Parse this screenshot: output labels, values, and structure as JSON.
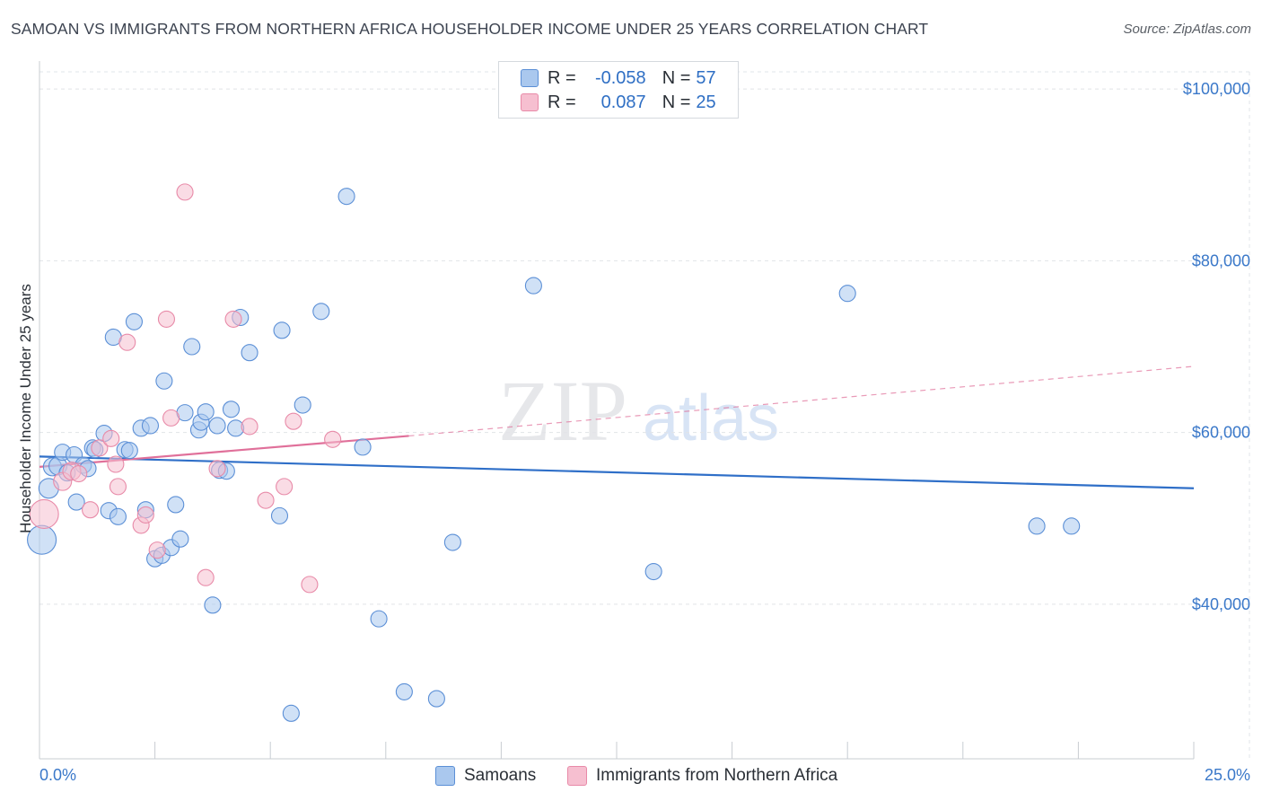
{
  "colors": {
    "samoans_fill": "#aac8ee",
    "samoans_stroke": "#5b8fd6",
    "samoans_line": "#2f6fc8",
    "immigrants_fill": "#f6bfd0",
    "immigrants_stroke": "#e88aa8",
    "immigrants_line": "#e0709a",
    "grid": "#e1e4e8",
    "axis_text": "#3a78c9"
  },
  "chart_data": {
    "type": "scatter",
    "title": "SAMOAN VS IMMIGRANTS FROM NORTHERN AFRICA HOUSEHOLDER INCOME UNDER 25 YEARS CORRELATION CHART",
    "source": "Source: ZipAtlas.com",
    "xlabel": "",
    "ylabel": "Householder Income Under 25 years",
    "xlim": [
      0,
      25
    ],
    "ylim": [
      22000,
      102000
    ],
    "x_tick_labels": [
      "0.0%",
      "25.0%"
    ],
    "y_ticks": [
      40000,
      60000,
      80000,
      100000
    ],
    "y_tick_labels": [
      "$40,000",
      "$60,000",
      "$80,000",
      "$100,000"
    ],
    "watermark": {
      "zip": "ZIP",
      "atlas": "atlas"
    },
    "legend": {
      "rows": [
        {
          "r_label": "R =",
          "r_value": "-0.058",
          "n_label": "N =",
          "n_value": "57"
        },
        {
          "r_label": "R =",
          "r_value": "0.087",
          "n_label": "N =",
          "n_value": "25"
        }
      ]
    },
    "series": [
      {
        "name": "Samoans",
        "trend": {
          "x": [
            0,
            25
          ],
          "y": [
            57200,
            53500
          ],
          "style": "solid"
        },
        "points": [
          {
            "x": 0.05,
            "y": 47500,
            "s": 16
          },
          {
            "x": 0.2,
            "y": 53500,
            "s": 11
          },
          {
            "x": 0.28,
            "y": 56000,
            "s": 10
          },
          {
            "x": 0.4,
            "y": 56100,
            "s": 10
          },
          {
            "x": 0.5,
            "y": 57700,
            "s": 9
          },
          {
            "x": 0.6,
            "y": 55300,
            "s": 9
          },
          {
            "x": 0.75,
            "y": 57400,
            "s": 9
          },
          {
            "x": 0.8,
            "y": 51900,
            "s": 9
          },
          {
            "x": 0.95,
            "y": 56200,
            "s": 9
          },
          {
            "x": 1.05,
            "y": 55800,
            "s": 9
          },
          {
            "x": 1.15,
            "y": 58200,
            "s": 9
          },
          {
            "x": 1.2,
            "y": 58000,
            "s": 9
          },
          {
            "x": 1.4,
            "y": 59900,
            "s": 9
          },
          {
            "x": 1.5,
            "y": 50900,
            "s": 9
          },
          {
            "x": 1.6,
            "y": 71100,
            "s": 9
          },
          {
            "x": 1.7,
            "y": 50200,
            "s": 9
          },
          {
            "x": 1.85,
            "y": 58000,
            "s": 9
          },
          {
            "x": 1.95,
            "y": 57900,
            "s": 9
          },
          {
            "x": 2.05,
            "y": 72900,
            "s": 9
          },
          {
            "x": 2.2,
            "y": 60500,
            "s": 9
          },
          {
            "x": 2.3,
            "y": 51000,
            "s": 9
          },
          {
            "x": 2.4,
            "y": 60800,
            "s": 9
          },
          {
            "x": 2.5,
            "y": 45300,
            "s": 9
          },
          {
            "x": 2.65,
            "y": 45700,
            "s": 9
          },
          {
            "x": 2.7,
            "y": 66000,
            "s": 9
          },
          {
            "x": 2.85,
            "y": 46600,
            "s": 9
          },
          {
            "x": 2.95,
            "y": 51600,
            "s": 9
          },
          {
            "x": 3.05,
            "y": 47600,
            "s": 9
          },
          {
            "x": 3.15,
            "y": 62300,
            "s": 9
          },
          {
            "x": 3.3,
            "y": 70000,
            "s": 9
          },
          {
            "x": 3.45,
            "y": 60300,
            "s": 9
          },
          {
            "x": 3.5,
            "y": 61200,
            "s": 9
          },
          {
            "x": 3.6,
            "y": 62400,
            "s": 9
          },
          {
            "x": 3.75,
            "y": 39900,
            "s": 9
          },
          {
            "x": 3.85,
            "y": 60800,
            "s": 9
          },
          {
            "x": 3.9,
            "y": 55600,
            "s": 9
          },
          {
            "x": 4.05,
            "y": 55500,
            "s": 9
          },
          {
            "x": 4.15,
            "y": 62700,
            "s": 9
          },
          {
            "x": 4.25,
            "y": 60500,
            "s": 9
          },
          {
            "x": 4.35,
            "y": 73400,
            "s": 9
          },
          {
            "x": 4.55,
            "y": 69300,
            "s": 9
          },
          {
            "x": 5.25,
            "y": 71900,
            "s": 9
          },
          {
            "x": 5.2,
            "y": 50300,
            "s": 9
          },
          {
            "x": 5.45,
            "y": 27300,
            "s": 9
          },
          {
            "x": 5.7,
            "y": 63200,
            "s": 9
          },
          {
            "x": 6.1,
            "y": 74100,
            "s": 9
          },
          {
            "x": 6.65,
            "y": 87500,
            "s": 9
          },
          {
            "x": 7.0,
            "y": 58300,
            "s": 9
          },
          {
            "x": 7.35,
            "y": 38300,
            "s": 9
          },
          {
            "x": 7.9,
            "y": 29800,
            "s": 9
          },
          {
            "x": 8.6,
            "y": 29000,
            "s": 9
          },
          {
            "x": 8.95,
            "y": 47200,
            "s": 9
          },
          {
            "x": 10.7,
            "y": 77100,
            "s": 9
          },
          {
            "x": 13.3,
            "y": 43800,
            "s": 9
          },
          {
            "x": 17.5,
            "y": 76200,
            "s": 9
          },
          {
            "x": 21.6,
            "y": 49100,
            "s": 9
          },
          {
            "x": 22.35,
            "y": 49100,
            "s": 9
          }
        ]
      },
      {
        "name": "Immigrants from Northern Africa",
        "trend": {
          "x": [
            0,
            8.0
          ],
          "y": [
            56000,
            59600
          ],
          "style": "solid",
          "extended": {
            "x": [
              8.0,
              25
            ],
            "y": [
              59600,
              67700
            ],
            "style": "dashed"
          }
        },
        "points": [
          {
            "x": 0.1,
            "y": 50500,
            "s": 16
          },
          {
            "x": 0.5,
            "y": 54300,
            "s": 10
          },
          {
            "x": 0.7,
            "y": 55500,
            "s": 10
          },
          {
            "x": 0.85,
            "y": 55200,
            "s": 9
          },
          {
            "x": 1.1,
            "y": 51000,
            "s": 9
          },
          {
            "x": 1.3,
            "y": 58200,
            "s": 9
          },
          {
            "x": 1.55,
            "y": 59300,
            "s": 9
          },
          {
            "x": 1.65,
            "y": 56300,
            "s": 9
          },
          {
            "x": 1.7,
            "y": 53700,
            "s": 9
          },
          {
            "x": 1.9,
            "y": 70500,
            "s": 9
          },
          {
            "x": 2.2,
            "y": 49200,
            "s": 9
          },
          {
            "x": 2.3,
            "y": 50400,
            "s": 9
          },
          {
            "x": 2.55,
            "y": 46300,
            "s": 9
          },
          {
            "x": 2.75,
            "y": 73200,
            "s": 9
          },
          {
            "x": 2.85,
            "y": 61700,
            "s": 9
          },
          {
            "x": 3.15,
            "y": 88000,
            "s": 9
          },
          {
            "x": 3.6,
            "y": 43100,
            "s": 9
          },
          {
            "x": 3.85,
            "y": 55800,
            "s": 9
          },
          {
            "x": 4.2,
            "y": 73200,
            "s": 9
          },
          {
            "x": 4.55,
            "y": 60700,
            "s": 9
          },
          {
            "x": 4.9,
            "y": 52100,
            "s": 9
          },
          {
            "x": 5.3,
            "y": 53700,
            "s": 9
          },
          {
            "x": 5.5,
            "y": 61300,
            "s": 9
          },
          {
            "x": 5.85,
            "y": 42300,
            "s": 9
          },
          {
            "x": 6.35,
            "y": 59200,
            "s": 9
          }
        ]
      }
    ]
  }
}
